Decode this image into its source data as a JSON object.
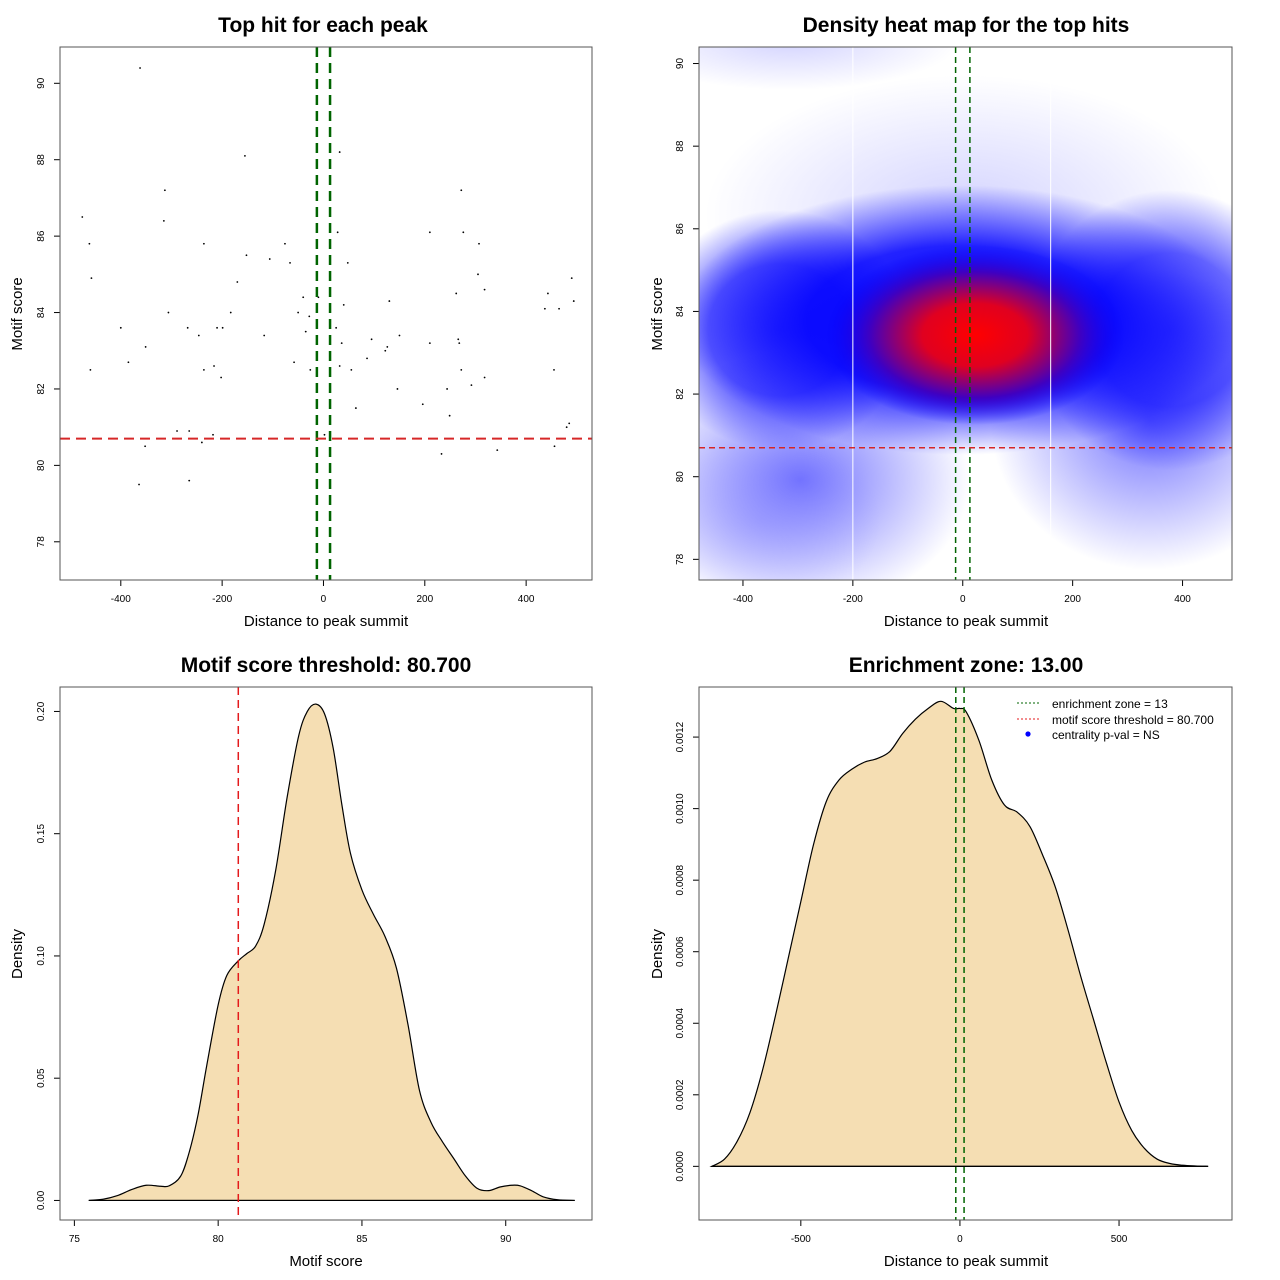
{
  "chart_data": [
    {
      "id": "scatter",
      "type": "scatter",
      "title": "Top hit for each peak",
      "xlabel": "Distance to peak summit",
      "ylabel": "Motif score",
      "xlim": [
        -520,
        530
      ],
      "ylim": [
        77,
        90.95
      ],
      "xticks": [
        -400,
        -200,
        0,
        200,
        400
      ],
      "yticks": [
        78,
        80,
        82,
        84,
        86,
        88,
        90
      ],
      "vlines": {
        "values": [
          -13,
          13
        ],
        "color": "#006400",
        "style": "dashed"
      },
      "hline": {
        "value": 80.7,
        "color": "#d62728",
        "style": "dashed"
      },
      "points": [
        [
          -476,
          86.5
        ],
        [
          -462,
          85.8
        ],
        [
          -458,
          84.9
        ],
        [
          -460,
          82.5
        ],
        [
          -400,
          83.6
        ],
        [
          -385,
          82.7
        ],
        [
          -351,
          83.1
        ],
        [
          -364,
          79.5
        ],
        [
          -362,
          90.4
        ],
        [
          -352,
          80.5
        ],
        [
          -313,
          87.2
        ],
        [
          -315,
          86.4
        ],
        [
          -306,
          84.0
        ],
        [
          -289,
          80.9
        ],
        [
          -268,
          83.6
        ],
        [
          -265,
          80.9
        ],
        [
          -265,
          79.6
        ],
        [
          -246,
          83.4
        ],
        [
          -236,
          85.8
        ],
        [
          -236,
          82.5
        ],
        [
          -240,
          80.6
        ],
        [
          -216,
          82.6
        ],
        [
          -218,
          80.8
        ],
        [
          -210,
          83.6
        ],
        [
          -202,
          82.3
        ],
        [
          -199,
          83.6
        ],
        [
          -183,
          84.0
        ],
        [
          -170,
          84.8
        ],
        [
          -155,
          88.1
        ],
        [
          -152,
          85.5
        ],
        [
          -117,
          83.4
        ],
        [
          -106,
          85.4
        ],
        [
          -76,
          85.8
        ],
        [
          -66,
          85.3
        ],
        [
          -58,
          82.7
        ],
        [
          -50,
          84.0
        ],
        [
          -40,
          84.4
        ],
        [
          -35,
          83.5
        ],
        [
          -28,
          83.9
        ],
        [
          -26,
          82.5
        ],
        [
          -10,
          84.4
        ],
        [
          2,
          80.8
        ],
        [
          25,
          83.6
        ],
        [
          28,
          86.1
        ],
        [
          32,
          82.6
        ],
        [
          32,
          88.2
        ],
        [
          36,
          83.2
        ],
        [
          40,
          84.2
        ],
        [
          48,
          85.3
        ],
        [
          55,
          82.5
        ],
        [
          64,
          81.5
        ],
        [
          86,
          82.8
        ],
        [
          95,
          83.3
        ],
        [
          122,
          83.0
        ],
        [
          126,
          83.1
        ],
        [
          130,
          84.3
        ],
        [
          146,
          82.0
        ],
        [
          150,
          83.4
        ],
        [
          196,
          81.6
        ],
        [
          210,
          86.1
        ],
        [
          210,
          83.2
        ],
        [
          233,
          80.3
        ],
        [
          244,
          82.0
        ],
        [
          249,
          81.3
        ],
        [
          262,
          84.5
        ],
        [
          266,
          83.3
        ],
        [
          268,
          83.2
        ],
        [
          272,
          87.2
        ],
        [
          272,
          82.5
        ],
        [
          276,
          86.1
        ],
        [
          292,
          82.1
        ],
        [
          307,
          85.8
        ],
        [
          305,
          85.0
        ],
        [
          318,
          84.6
        ],
        [
          318,
          82.3
        ],
        [
          343,
          80.4
        ],
        [
          437,
          84.1
        ],
        [
          443,
          84.5
        ],
        [
          455,
          82.5
        ],
        [
          456,
          80.5
        ],
        [
          465,
          84.1
        ],
        [
          480,
          81.0
        ],
        [
          485,
          81.1
        ],
        [
          490,
          84.9
        ],
        [
          494,
          84.3
        ]
      ]
    },
    {
      "id": "heatmap",
      "type": "heatmap",
      "title": "Density heat map for the top hits",
      "xlabel": "Distance to peak summit",
      "ylabel": "Motif score",
      "xlim": [
        -480,
        490
      ],
      "ylim": [
        77.5,
        90.4
      ],
      "xticks": [
        -400,
        -200,
        0,
        200,
        400
      ],
      "yticks": [
        78,
        80,
        82,
        84,
        86,
        88,
        90
      ],
      "colors": [
        "#ffffff",
        "#0000ff",
        "#ff0000"
      ],
      "peak": {
        "x": 40,
        "y": 83.4
      },
      "white_vlines": [
        -200,
        160
      ],
      "vlines": {
        "values": [
          -13,
          13
        ],
        "color": "#006400",
        "style": "dashed"
      },
      "hline": {
        "value": 80.7,
        "color": "#d62728",
        "style": "dashed"
      }
    },
    {
      "id": "score-density",
      "type": "area",
      "title": "Motif score threshold: 80.700",
      "xlabel": "Motif score",
      "ylabel": "Density",
      "xlim": [
        74.5,
        93
      ],
      "ylim": [
        -0.008,
        0.21
      ],
      "xticks": [
        75,
        80,
        85,
        90
      ],
      "yticks": [
        0.0,
        0.05,
        0.1,
        0.15,
        0.2
      ],
      "ytick_labels": [
        "0.00",
        "0.05",
        "0.10",
        "0.15",
        "0.20"
      ],
      "fill": "#f5deb3",
      "vline": {
        "value": 80.7,
        "color": "#e41a1c",
        "style": "dashed"
      },
      "x": [
        75.5,
        76.0,
        76.5,
        77.0,
        77.5,
        78.0,
        78.3,
        78.7,
        79.0,
        79.3,
        79.6,
        80.0,
        80.3,
        80.7,
        81.0,
        81.3,
        81.6,
        82.0,
        82.4,
        82.8,
        83.1,
        83.4,
        83.7,
        84.0,
        84.3,
        84.6,
        85.0,
        85.4,
        85.8,
        86.2,
        86.6,
        87.0,
        87.4,
        87.8,
        88.2,
        88.6,
        89.0,
        89.4,
        89.8,
        90.2,
        90.5,
        90.9,
        91.3,
        91.8,
        92.4
      ],
      "y": [
        0.0,
        0.0005,
        0.002,
        0.0045,
        0.0062,
        0.0058,
        0.006,
        0.01,
        0.02,
        0.035,
        0.055,
        0.08,
        0.092,
        0.098,
        0.101,
        0.104,
        0.113,
        0.135,
        0.165,
        0.19,
        0.2,
        0.203,
        0.199,
        0.185,
        0.162,
        0.142,
        0.127,
        0.117,
        0.108,
        0.095,
        0.072,
        0.045,
        0.032,
        0.024,
        0.017,
        0.01,
        0.005,
        0.004,
        0.0055,
        0.0062,
        0.006,
        0.004,
        0.0015,
        0.0003,
        0.0
      ]
    },
    {
      "id": "distance-density",
      "type": "area",
      "title": "Enrichment zone: 13.00",
      "xlabel": "Distance to peak summit",
      "ylabel": "Density",
      "xlim": [
        -820,
        855
      ],
      "ylim": [
        -0.00015,
        0.00134
      ],
      "xticks": [
        -500,
        0,
        500
      ],
      "yticks": [
        0,
        0.0002,
        0.0004,
        0.0006,
        0.0008,
        0.001,
        0.0012
      ],
      "ytick_labels": [
        "0.0000",
        "0.0002",
        "0.0004",
        "0.0006",
        "0.0008",
        "0.0010",
        "0.0012"
      ],
      "fill": "#f5deb3",
      "vlines": {
        "values": [
          -13,
          13
        ],
        "color": "#006400",
        "style": "dashed"
      },
      "legend": {
        "position": "top-right",
        "entries": [
          {
            "label": "enrichment zone = 13",
            "symbol": "dotted-line",
            "color": "#006400"
          },
          {
            "label": "motif score threshold = 80.700",
            "symbol": "dotted-line",
            "color": "#e41a1c"
          },
          {
            "label": "centrality p-val = NS",
            "symbol": "dot",
            "color": "#0000ff"
          }
        ]
      },
      "x": [
        -780,
        -740,
        -700,
        -660,
        -620,
        -580,
        -540,
        -500,
        -460,
        -420,
        -380,
        -340,
        -300,
        -260,
        -220,
        -180,
        -140,
        -100,
        -60,
        -20,
        0,
        20,
        60,
        100,
        140,
        180,
        220,
        260,
        300,
        340,
        380,
        420,
        460,
        500,
        540,
        580,
        620,
        660,
        700,
        740,
        780
      ],
      "y": [
        0.0,
        2e-05,
        7e-05,
        0.00015,
        0.00027,
        0.00042,
        0.00058,
        0.00074,
        0.0009,
        0.00102,
        0.00108,
        0.00111,
        0.00113,
        0.00114,
        0.00116,
        0.00121,
        0.00125,
        0.00128,
        0.0013,
        0.00128,
        0.00128,
        0.00127,
        0.00119,
        0.00108,
        0.00101,
        0.00099,
        0.00095,
        0.00087,
        0.00078,
        0.00066,
        0.00053,
        0.00041,
        0.00029,
        0.00018,
        0.0001,
        5e-05,
        2e-05,
        8e-06,
        3e-06,
        1e-06,
        0.0
      ]
    }
  ]
}
